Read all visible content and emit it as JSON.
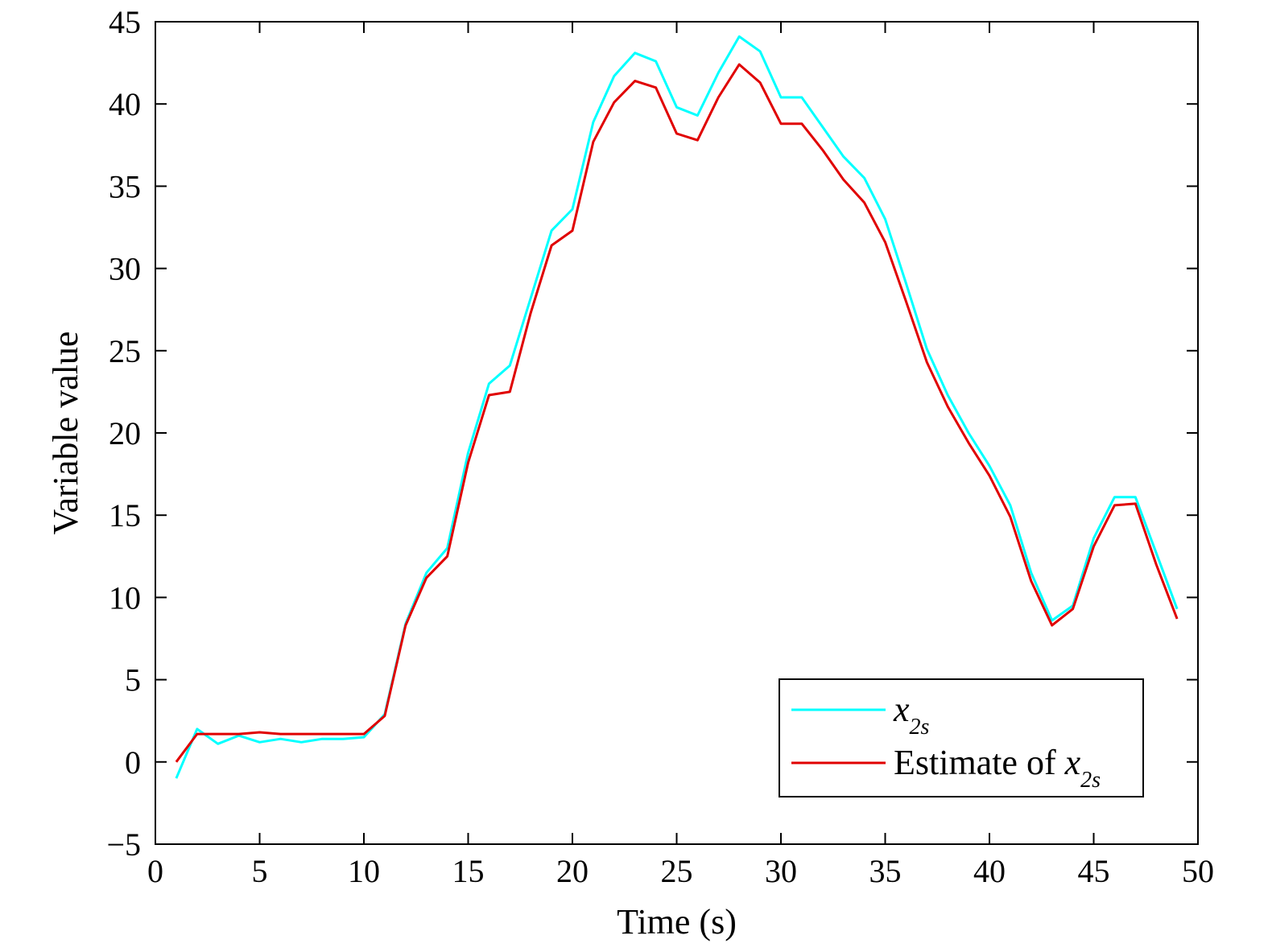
{
  "chart_data": {
    "type": "line",
    "title": "",
    "xlabel": "Time (s)",
    "ylabel": "Variable value",
    "xlim": [
      0,
      50
    ],
    "ylim": [
      -5,
      45
    ],
    "xticks": [
      0,
      5,
      10,
      15,
      20,
      25,
      30,
      35,
      40,
      45,
      50
    ],
    "yticks": [
      -5,
      0,
      5,
      10,
      15,
      20,
      25,
      30,
      35,
      40,
      45
    ],
    "xtick_labels": [
      "0",
      "5",
      "10",
      "15",
      "20",
      "25",
      "30",
      "35",
      "40",
      "45",
      "50"
    ],
    "ytick_labels": [
      "−5",
      "0",
      "5",
      "10",
      "15",
      "20",
      "25",
      "30",
      "35",
      "40",
      "45"
    ],
    "grid": false,
    "legend_position": "bottom-right",
    "x": [
      1,
      2,
      3,
      4,
      5,
      6,
      7,
      8,
      9,
      10,
      11,
      12,
      13,
      14,
      15,
      16,
      17,
      18,
      19,
      20,
      21,
      22,
      23,
      24,
      25,
      26,
      27,
      28,
      29,
      30,
      31,
      32,
      33,
      34,
      35,
      36,
      37,
      38,
      39,
      40,
      41,
      42,
      43,
      44,
      45,
      46,
      47,
      48,
      49
    ],
    "series": [
      {
        "legend": {
          "symbol": "x",
          "subscript": "2s"
        },
        "color": "#00ffff",
        "values": [
          -1.0,
          2.0,
          1.1,
          1.6,
          1.2,
          1.4,
          1.2,
          1.4,
          1.4,
          1.5,
          2.9,
          8.4,
          11.5,
          13.0,
          18.8,
          23.0,
          24.1,
          28.2,
          32.3,
          33.6,
          38.9,
          41.7,
          43.1,
          42.6,
          39.8,
          39.3,
          41.9,
          44.1,
          43.2,
          40.4,
          40.4,
          38.6,
          36.8,
          35.5,
          33.0,
          29.1,
          25.1,
          22.3,
          20.0,
          18.0,
          15.6,
          11.5,
          8.6,
          9.5,
          13.6,
          16.1,
          16.1,
          12.7,
          9.3
        ]
      },
      {
        "legend": {
          "prefix": "Estimate of ",
          "symbol": "x",
          "subscript": "2s"
        },
        "color": "#e00000",
        "values": [
          0.0,
          1.7,
          1.7,
          1.7,
          1.8,
          1.7,
          1.7,
          1.7,
          1.7,
          1.7,
          2.8,
          8.3,
          11.2,
          12.5,
          18.2,
          22.3,
          22.5,
          27.3,
          31.4,
          32.3,
          37.7,
          40.1,
          41.4,
          41.0,
          38.2,
          37.8,
          40.4,
          42.4,
          41.3,
          38.8,
          38.8,
          37.2,
          35.4,
          34.0,
          31.6,
          28.0,
          24.3,
          21.6,
          19.4,
          17.4,
          14.9,
          11.0,
          8.3,
          9.3,
          13.1,
          15.6,
          15.7,
          12.0,
          8.7
        ]
      }
    ]
  }
}
